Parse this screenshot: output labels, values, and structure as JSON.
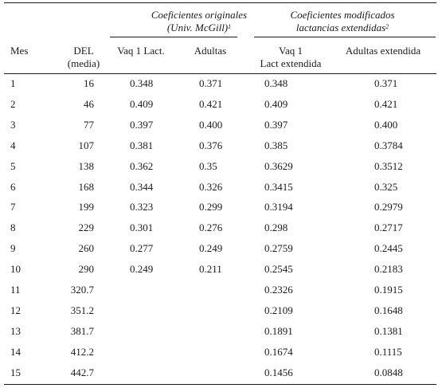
{
  "table": {
    "group_headers": {
      "original": {
        "line1": "Coeficientes originales",
        "line2": "(Univ. McGill)",
        "note": "1"
      },
      "modified": {
        "line1": "Coeficientes modificados",
        "line2": "lactancias extendidas",
        "note": "2"
      }
    },
    "columns": {
      "mes": "Mes",
      "del_line1": "DEL",
      "del_line2": "(media)",
      "orig_vaq": "Vaq 1 Lact.",
      "orig_adultas": "Adultas",
      "mod_vaq_line1": "Vaq 1",
      "mod_vaq_line2": "Lact extendida",
      "mod_adultas": "Adultas extendida"
    },
    "rows": [
      {
        "mes": "1",
        "del": "16",
        "ov": "0.348",
        "oa": "0.371",
        "mv": "0.348",
        "ma": "0.371"
      },
      {
        "mes": "2",
        "del": "46",
        "ov": "0.409",
        "oa": "0.421",
        "mv": "0.409",
        "ma": "0.421"
      },
      {
        "mes": "3",
        "del": "77",
        "ov": "0.397",
        "oa": "0.400",
        "mv": "0.397",
        "ma": "0.400"
      },
      {
        "mes": "4",
        "del": "107",
        "ov": "0.381",
        "oa": "0.376",
        "mv": "0.385",
        "ma": "0.3784"
      },
      {
        "mes": "5",
        "del": "138",
        "ov": "0.362",
        "oa": "0.35",
        "mv": "0.3629",
        "ma": "0.3512"
      },
      {
        "mes": "6",
        "del": "168",
        "ov": "0.344",
        "oa": "0.326",
        "mv": "0.3415",
        "ma": "0.325"
      },
      {
        "mes": "7",
        "del": "199",
        "ov": "0.323",
        "oa": "0.299",
        "mv": "0.3194",
        "ma": "0.2979"
      },
      {
        "mes": "8",
        "del": "229",
        "ov": "0.301",
        "oa": "0.276",
        "mv": "0.298",
        "ma": "0.2717"
      },
      {
        "mes": "9",
        "del": "260",
        "ov": "0.277",
        "oa": "0.249",
        "mv": "0.2759",
        "ma": "0.2445"
      },
      {
        "mes": "10",
        "del": "290",
        "ov": "0.249",
        "oa": "0.211",
        "mv": "0.2545",
        "ma": "0.2183"
      },
      {
        "mes": "11",
        "del": "320.7",
        "ov": "",
        "oa": "",
        "mv": "0.2326",
        "ma": "0.1915"
      },
      {
        "mes": "12",
        "del": "351.2",
        "ov": "",
        "oa": "",
        "mv": "0.2109",
        "ma": "0.1648"
      },
      {
        "mes": "13",
        "del": "381.7",
        "ov": "",
        "oa": "",
        "mv": "0.1891",
        "ma": "0.1381"
      },
      {
        "mes": "14",
        "del": "412.2",
        "ov": "",
        "oa": "",
        "mv": "0.1674",
        "ma": "0.1115"
      },
      {
        "mes": "15",
        "del": "442.7",
        "ov": "",
        "oa": "",
        "mv": "0.1456",
        "ma": "0.0848"
      }
    ]
  }
}
